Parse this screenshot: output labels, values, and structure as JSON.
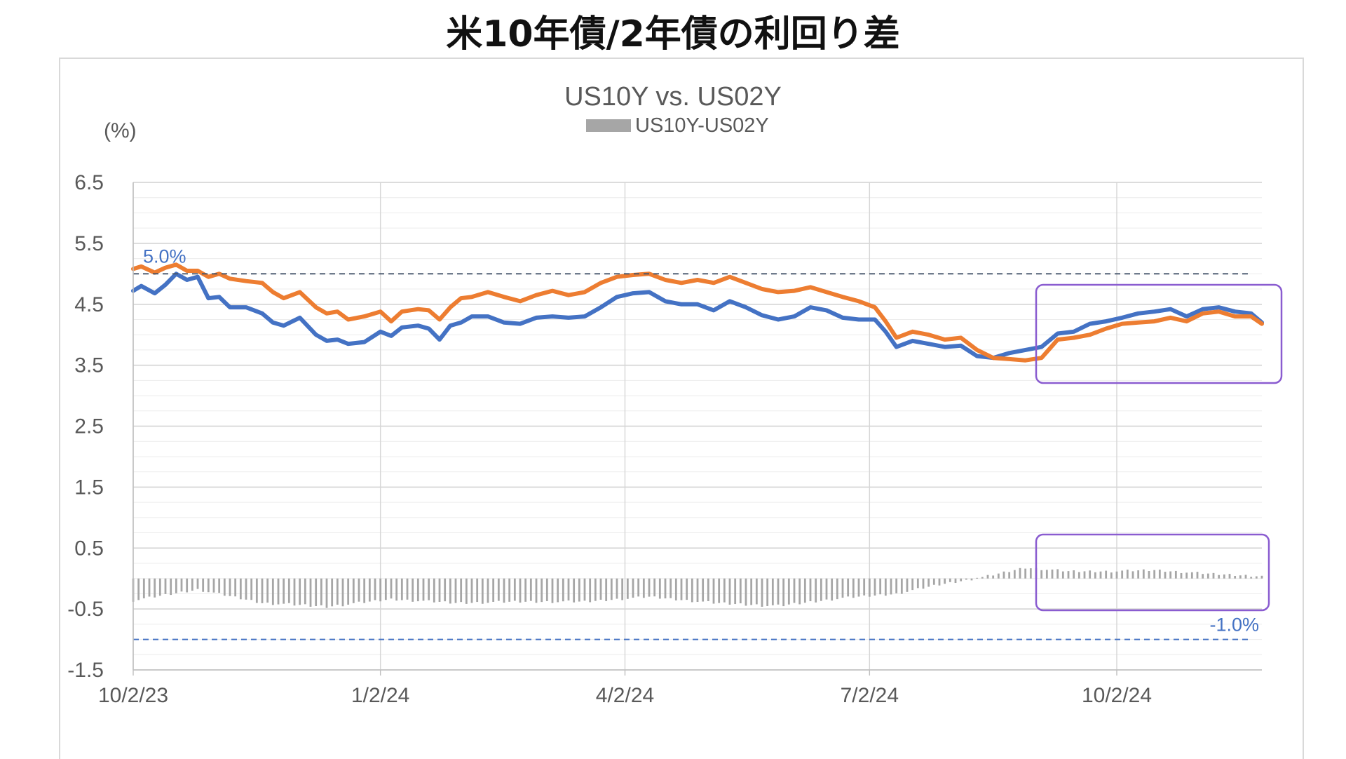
{
  "page_title": "米10年債/2年債の利回り差",
  "chart_data": {
    "type": "line",
    "title": "US10Y vs. US02Y",
    "unit_label": "(%)",
    "legend": [
      {
        "name": "US10Y-US02Y",
        "color": "#a6a6a6",
        "kind": "bar"
      }
    ],
    "ylim": [
      -1.5,
      6.5
    ],
    "y_ticks": [
      "6.5",
      "5.5",
      "4.5",
      "3.5",
      "2.5",
      "1.5",
      "0.5",
      "-0.5",
      "-1.5"
    ],
    "x_ticks": [
      "10/2/23",
      "1/2/24",
      "4/2/24",
      "7/2/24",
      "10/2/24"
    ],
    "x_range_days": [
      0,
      420
    ],
    "reference_lines": [
      {
        "value": 5.0,
        "label": "5.0%",
        "color": "#44546a"
      },
      {
        "value": -1.0,
        "label": "-1.0%",
        "color": "#4472c4"
      }
    ],
    "series": [
      {
        "color": "#4472c4",
        "x": [
          0,
          3,
          8,
          12,
          16,
          20,
          24,
          28,
          32,
          36,
          42,
          48,
          52,
          56,
          62,
          68,
          72,
          76,
          80,
          86,
          92,
          96,
          100,
          106,
          110,
          114,
          118,
          122,
          126,
          132,
          138,
          144,
          150,
          156,
          162,
          168,
          174,
          180,
          186,
          192,
          198,
          204,
          210,
          216,
          222,
          228,
          234,
          240,
          246,
          252,
          258,
          264,
          270,
          276,
          280,
          284,
          290,
          296,
          302,
          308,
          314,
          320,
          326,
          332,
          338,
          344,
          350,
          356,
          362,
          368,
          374,
          380,
          386,
          392,
          398,
          404,
          410,
          416,
          420
        ],
        "values": [
          4.72,
          4.8,
          4.68,
          4.82,
          5.0,
          4.9,
          4.95,
          4.6,
          4.62,
          4.45,
          4.45,
          4.35,
          4.2,
          4.15,
          4.28,
          4.0,
          3.9,
          3.92,
          3.85,
          3.88,
          4.05,
          3.98,
          4.12,
          4.15,
          4.1,
          3.92,
          4.15,
          4.2,
          4.3,
          4.3,
          4.2,
          4.18,
          4.28,
          4.3,
          4.28,
          4.3,
          4.45,
          4.62,
          4.68,
          4.7,
          4.55,
          4.5,
          4.5,
          4.4,
          4.55,
          4.45,
          4.32,
          4.25,
          4.3,
          4.45,
          4.4,
          4.28,
          4.25,
          4.25,
          4.05,
          3.8,
          3.9,
          3.85,
          3.8,
          3.82,
          3.65,
          3.62,
          3.7,
          3.75,
          3.8,
          4.02,
          4.05,
          4.18,
          4.22,
          4.28,
          4.35,
          4.38,
          4.42,
          4.3,
          4.42,
          4.45,
          4.38,
          4.35,
          4.2
        ]
      },
      {
        "color": "#ed7d31",
        "x": [
          0,
          3,
          8,
          12,
          16,
          20,
          24,
          28,
          32,
          36,
          42,
          48,
          52,
          56,
          62,
          68,
          72,
          76,
          80,
          86,
          92,
          96,
          100,
          106,
          110,
          114,
          118,
          122,
          126,
          132,
          138,
          144,
          150,
          156,
          162,
          168,
          174,
          180,
          186,
          192,
          198,
          204,
          210,
          216,
          222,
          228,
          234,
          240,
          246,
          252,
          258,
          264,
          270,
          276,
          280,
          284,
          290,
          296,
          302,
          308,
          314,
          320,
          326,
          332,
          338,
          344,
          350,
          356,
          362,
          368,
          374,
          380,
          386,
          392,
          398,
          404,
          410,
          416,
          420
        ],
        "values": [
          5.08,
          5.12,
          5.02,
          5.1,
          5.15,
          5.05,
          5.05,
          4.95,
          5.0,
          4.92,
          4.88,
          4.85,
          4.7,
          4.6,
          4.7,
          4.45,
          4.35,
          4.38,
          4.25,
          4.3,
          4.38,
          4.22,
          4.38,
          4.42,
          4.4,
          4.25,
          4.45,
          4.6,
          4.62,
          4.7,
          4.62,
          4.55,
          4.65,
          4.72,
          4.65,
          4.7,
          4.85,
          4.95,
          4.98,
          5.0,
          4.9,
          4.85,
          4.9,
          4.85,
          4.95,
          4.85,
          4.75,
          4.7,
          4.72,
          4.78,
          4.7,
          4.62,
          4.55,
          4.45,
          4.22,
          3.95,
          4.05,
          4.0,
          3.92,
          3.95,
          3.75,
          3.62,
          3.6,
          3.58,
          3.62,
          3.92,
          3.95,
          4.0,
          4.1,
          4.18,
          4.2,
          4.22,
          4.28,
          4.22,
          4.35,
          4.38,
          4.3,
          4.3,
          4.18
        ]
      },
      {
        "name": "US10Y-US02Y",
        "type": "bar",
        "color": "#a6a6a6",
        "x": [
          0,
          24,
          48,
          72,
          96,
          120,
          144,
          168,
          192,
          216,
          240,
          264,
          284,
          300,
          316,
          332,
          348,
          364,
          380,
          400,
          420
        ],
        "values": [
          -0.36,
          -0.18,
          -0.4,
          -0.46,
          -0.34,
          -0.4,
          -0.38,
          -0.38,
          -0.3,
          -0.4,
          -0.45,
          -0.32,
          -0.25,
          -0.1,
          0.02,
          0.18,
          0.12,
          0.12,
          0.14,
          0.08,
          0.04
        ]
      }
    ]
  }
}
